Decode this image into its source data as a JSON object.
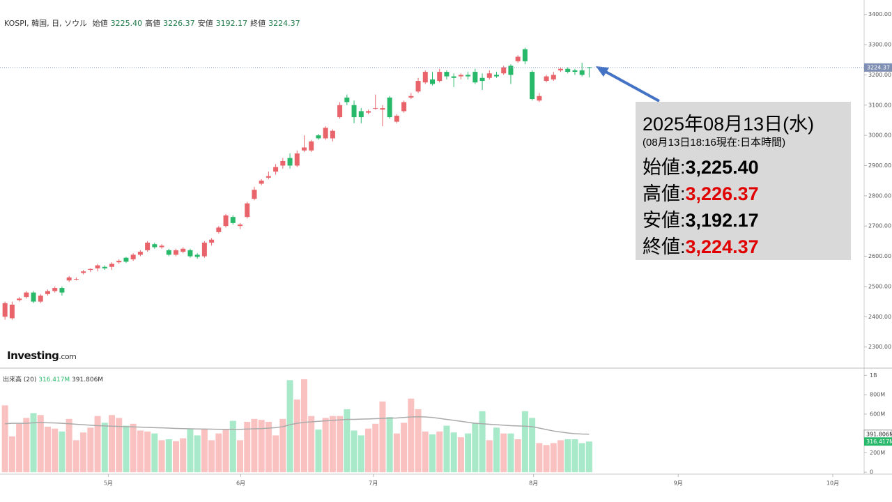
{
  "header": {
    "symbol": "KOSPI, 韓国, 日, ソウル",
    "fields": [
      {
        "label": "始値",
        "value": "3225.40"
      },
      {
        "label": "高値",
        "value": "3226.37"
      },
      {
        "label": "安値",
        "value": "3192.17"
      },
      {
        "label": "終値",
        "value": "3224.37"
      }
    ]
  },
  "volume_header": {
    "title": "出来高 (20)",
    "values": [
      "316.417M",
      "391.806M"
    ]
  },
  "logo": {
    "brand": "Investing",
    "suffix": ".com"
  },
  "annotation": {
    "date": "2025年08月13日(水)",
    "note": "(08月13日18:16現在:日本時間)",
    "rows": [
      {
        "label": "始値:",
        "value": "3,225.40",
        "color": "#000000"
      },
      {
        "label": "高値:",
        "value": "3,226.37",
        "color": "#e00000"
      },
      {
        "label": "安値:",
        "value": "3,192.17",
        "color": "#000000"
      },
      {
        "label": "終値:",
        "value": "3,224.37",
        "color": "#e00000"
      }
    ]
  },
  "chart_data": {
    "type": "candlestick",
    "open": [
      2400,
      2395,
      2455,
      2465,
      2480,
      2450,
      2475,
      2485,
      2495,
      2520,
      2525,
      2545,
      2555,
      2560,
      2565,
      2565,
      2580,
      2595,
      2590,
      2605,
      2620,
      2640,
      2630,
      2620,
      2605,
      2615,
      2620,
      2605,
      2600,
      2645,
      2680,
      2700,
      2730,
      2700,
      2730,
      2790,
      2840,
      2860,
      2880,
      2900,
      2925,
      2900,
      2950,
      2950,
      3000,
      2990,
      2990,
      3060,
      3125,
      3100,
      3080,
      3075,
      3090,
      3085,
      3125,
      3045,
      3080,
      3125,
      3145,
      3175,
      3185,
      3180,
      3210,
      3195,
      3195,
      3200,
      3210,
      3190,
      3190,
      3200,
      3205,
      3230,
      3245,
      3285,
      3210,
      3115,
      3180,
      3185,
      3215,
      3220,
      3215,
      3215,
      3225.4
    ],
    "high": [
      2450,
      2450,
      2465,
      2485,
      2485,
      2475,
      2490,
      2500,
      2500,
      2535,
      2530,
      2555,
      2560,
      2575,
      2570,
      2580,
      2590,
      2598,
      2610,
      2620,
      2650,
      2645,
      2640,
      2625,
      2625,
      2630,
      2625,
      2610,
      2650,
      2660,
      2700,
      2740,
      2735,
      2710,
      2780,
      2830,
      2855,
      2880,
      2905,
      2925,
      2940,
      2950,
      3000,
      2985,
      3005,
      3030,
      3020,
      3110,
      3135,
      3115,
      3090,
      3085,
      3135,
      3100,
      3130,
      3070,
      3115,
      3140,
      3190,
      3215,
      3210,
      3220,
      3215,
      3205,
      3205,
      3210,
      3220,
      3205,
      3215,
      3210,
      3230,
      3235,
      3265,
      3290,
      3215,
      3140,
      3200,
      3210,
      3225,
      3225,
      3220,
      3240,
      3226.37
    ],
    "low": [
      2390,
      2390,
      2450,
      2460,
      2445,
      2445,
      2470,
      2480,
      2470,
      2515,
      2520,
      2540,
      2548,
      2550,
      2555,
      2555,
      2575,
      2578,
      2585,
      2600,
      2615,
      2625,
      2625,
      2600,
      2600,
      2610,
      2595,
      2592,
      2595,
      2635,
      2675,
      2695,
      2705,
      2690,
      2725,
      2785,
      2835,
      2855,
      2870,
      2890,
      2890,
      2895,
      2945,
      2945,
      2985,
      2985,
      2980,
      3055,
      3100,
      3040,
      3040,
      3070,
      3085,
      3030,
      3055,
      3040,
      3075,
      3120,
      3140,
      3170,
      3165,
      3175,
      3185,
      3160,
      3185,
      3185,
      3170,
      3150,
      3185,
      3190,
      3200,
      3170,
      3240,
      3235,
      3115,
      3110,
      3175,
      3180,
      3210,
      3205,
      3200,
      3195,
      3192.17
    ],
    "close": [
      2445,
      2440,
      2460,
      2480,
      2450,
      2470,
      2485,
      2495,
      2480,
      2530,
      2525,
      2550,
      2558,
      2570,
      2560,
      2575,
      2585,
      2582,
      2605,
      2615,
      2645,
      2630,
      2635,
      2605,
      2620,
      2625,
      2600,
      2598,
      2645,
      2655,
      2695,
      2735,
      2710,
      2705,
      2775,
      2820,
      2850,
      2865,
      2895,
      2915,
      2900,
      2940,
      2960,
      2980,
      2990,
      3025,
      3015,
      3100,
      3110,
      3060,
      3060,
      3080,
      3090,
      3090,
      3060,
      3065,
      3110,
      3130,
      3180,
      3210,
      3170,
      3210,
      3195,
      3190,
      3200,
      3195,
      3175,
      3180,
      3205,
      3195,
      3225,
      3200,
      3260,
      3245,
      3120,
      3130,
      3195,
      3200,
      3220,
      3210,
      3210,
      3200,
      3224.37
    ],
    "volume": [
      690,
      370,
      500,
      560,
      610,
      590,
      470,
      450,
      420,
      550,
      330,
      410,
      460,
      580,
      510,
      590,
      560,
      480,
      500,
      430,
      420,
      400,
      330,
      340,
      320,
      350,
      450,
      380,
      450,
      330,
      400,
      440,
      530,
      330,
      520,
      550,
      540,
      520,
      380,
      550,
      950,
      750,
      960,
      580,
      440,
      560,
      580,
      580,
      650,
      430,
      380,
      450,
      500,
      730,
      570,
      400,
      510,
      760,
      650,
      420,
      390,
      420,
      480,
      410,
      360,
      400,
      510,
      630,
      330,
      460,
      400,
      400,
      340,
      630,
      560,
      300,
      280,
      300,
      330,
      340,
      340,
      300,
      316.417
    ],
    "volume_ma": [
      500,
      505,
      505,
      505,
      510,
      512,
      510,
      508,
      505,
      500,
      495,
      490,
      485,
      480,
      478,
      475,
      472,
      470,
      468,
      465,
      462,
      460,
      458,
      455,
      452,
      450,
      448,
      446,
      445,
      444,
      443,
      442,
      442,
      443,
      445,
      448,
      450,
      455,
      460,
      470,
      490,
      505,
      515,
      520,
      525,
      530,
      535,
      540,
      545,
      545,
      548,
      550,
      552,
      555,
      558,
      560,
      565,
      570,
      572,
      570,
      565,
      555,
      545,
      535,
      525,
      515,
      505,
      500,
      495,
      490,
      485,
      480,
      478,
      475,
      470,
      455,
      440,
      425,
      415,
      405,
      398,
      394,
      391.806
    ],
    "up_color": "#e8646a",
    "down_color": "#27b86a",
    "volume_up_color": "#f9c1bf",
    "volume_down_color": "#a7e9c9",
    "ma_color": "#aaaaaa",
    "xlim": [
      -0.7,
      120.6
    ],
    "xticks": [
      {
        "value": 14.5,
        "label": "5月"
      },
      {
        "value": 33.1,
        "label": "6月"
      },
      {
        "value": 51.7,
        "label": "7月"
      },
      {
        "value": 74.2,
        "label": "8月"
      },
      {
        "value": 94.5,
        "label": "9月"
      },
      {
        "value": 116.2,
        "label": "10月"
      }
    ],
    "ylim": [
      2230,
      3420
    ],
    "yticks": [
      {
        "value": 2300,
        "label": "2300.00"
      },
      {
        "value": 2400,
        "label": "2400.00"
      },
      {
        "value": 2500,
        "label": "2500.00"
      },
      {
        "value": 2600,
        "label": "2600.00"
      },
      {
        "value": 2700,
        "label": "2700.00"
      },
      {
        "value": 2800,
        "label": "2800.00"
      },
      {
        "value": 2900,
        "label": "2900.00"
      },
      {
        "value": 3000,
        "label": "3000.00"
      },
      {
        "value": 3100,
        "label": "3100.00"
      },
      {
        "value": 3200,
        "label": "3200.00"
      },
      {
        "value": 3300,
        "label": "3300.00"
      },
      {
        "value": 3400,
        "label": "3400.00"
      }
    ],
    "vlim": [
      -20,
      1060
    ],
    "vticks": [
      0,
      {
        "value": 200,
        "label": "200M"
      },
      {
        "value": 600,
        "label": "600M"
      },
      {
        "value": 800,
        "label": "800M"
      },
      {
        "value": 1000,
        "label": "1B"
      }
    ]
  }
}
